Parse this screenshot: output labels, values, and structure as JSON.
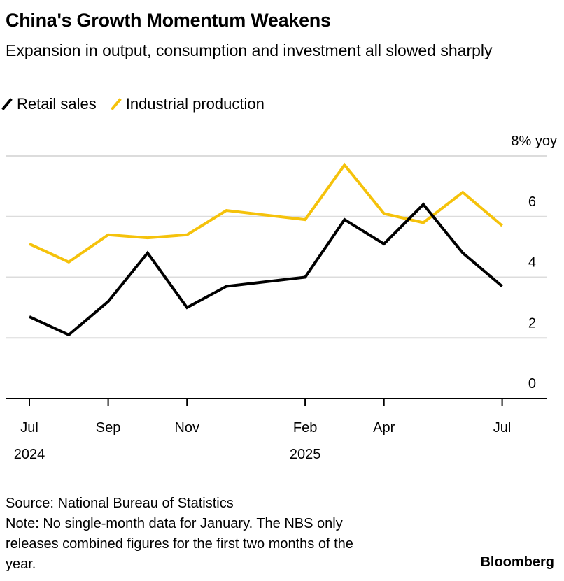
{
  "title": "China's Growth Momentum Weakens",
  "subtitle": "Expansion in output, consumption and investment all slowed sharply",
  "source": "Source: National Bureau of Statistics",
  "note": "Note: No single-month data for January. The NBS only releases combined figures for the first two months of the year.",
  "brand": "Bloomberg",
  "chart_data": {
    "type": "line",
    "title": "China's Growth Momentum Weakens",
    "ylabel": "% yoy",
    "ylim": [
      0,
      8
    ],
    "yticks": [
      {
        "v": 0,
        "label": "0"
      },
      {
        "v": 2,
        "label": "2"
      },
      {
        "v": 4,
        "label": "4"
      },
      {
        "v": 6,
        "label": "6"
      },
      {
        "v": 8,
        "label": "8% yoy"
      }
    ],
    "xticks": [
      {
        "i": 0,
        "label": "Jul",
        "year": "2024"
      },
      {
        "i": 2,
        "label": "Sep"
      },
      {
        "i": 4,
        "label": "Nov"
      },
      {
        "i": 7,
        "label": "Feb",
        "year": "2025"
      },
      {
        "i": 9,
        "label": "Apr"
      },
      {
        "i": 12,
        "label": "Jul"
      }
    ],
    "x": [
      "2024-07",
      "2024-08",
      "2024-09",
      "2024-10",
      "2024-11",
      "2024-12",
      "2025-02",
      "2025-03",
      "2025-04",
      "2025-05",
      "2025-06",
      "2025-07"
    ],
    "x_index": [
      0,
      1,
      2,
      3,
      4,
      5,
      7,
      8,
      9,
      10,
      11,
      12
    ],
    "series": [
      {
        "name": "Retail sales",
        "color": "#000000",
        "values": [
          2.7,
          2.1,
          3.2,
          4.8,
          3.0,
          3.7,
          4.0,
          5.9,
          5.1,
          6.4,
          4.8,
          3.7
        ]
      },
      {
        "name": "Industrial production",
        "color": "#f5c20b",
        "values": [
          5.1,
          4.5,
          5.4,
          5.3,
          5.4,
          6.2,
          5.9,
          7.7,
          6.1,
          5.8,
          6.8,
          5.7
        ]
      }
    ],
    "legend": "top-left",
    "grid": true
  }
}
